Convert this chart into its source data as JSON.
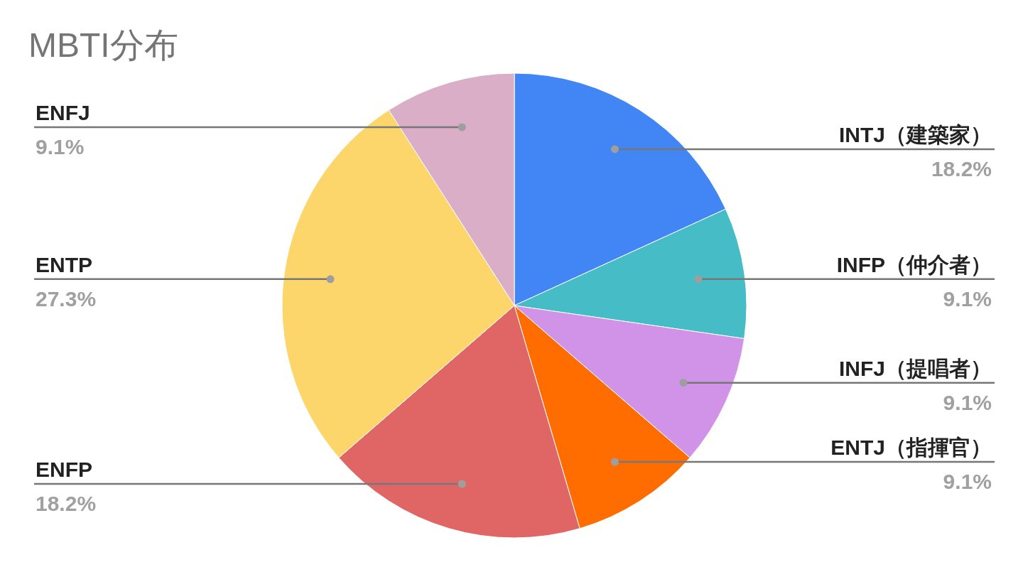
{
  "chart_data": {
    "type": "pie",
    "title": "MBTI分布",
    "categories": [
      "INTJ（建築家）",
      "INFP（仲介者）",
      "INFJ（提唱者）",
      "ENTJ（指揮官）",
      "ENFP",
      "ENTP",
      "ENFJ"
    ],
    "values": [
      18.2,
      9.1,
      9.1,
      9.1,
      18.2,
      27.3,
      9.1
    ],
    "value_labels": [
      "18.2%",
      "9.1%",
      "9.1%",
      "9.1%",
      "18.2%",
      "27.3%",
      "9.1%"
    ],
    "colors": [
      "#4285f4",
      "#46bdc6",
      "#d093e8",
      "#ff6d01",
      "#e06666",
      "#fcd66a",
      "#d9aec6"
    ]
  }
}
